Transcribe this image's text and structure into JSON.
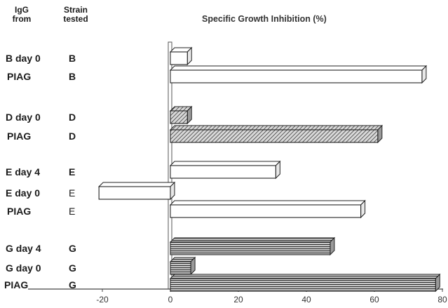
{
  "headers": {
    "igg_from": "IgG\nfrom",
    "strain_tested": "Strain\ntested"
  },
  "chart_data": {
    "type": "bar",
    "orientation": "horizontal",
    "title": "Specific Growth Inhibition (%)",
    "xlabel": "",
    "ylabel": "",
    "xlim": [
      -30,
      80
    ],
    "xticks": [
      "-20",
      "0",
      "20",
      "40",
      "60",
      "80"
    ],
    "grid": false,
    "rows": [
      {
        "igg": "B day 0",
        "strain": "B",
        "value": 5,
        "fill": "white"
      },
      {
        "igg": "PIAG",
        "strain": "B",
        "value": 74,
        "fill": "white"
      },
      {
        "igg": "D day 0",
        "strain": "D",
        "value": 5,
        "fill": "diagonal"
      },
      {
        "igg": "PIAG",
        "strain": "D",
        "value": 61,
        "fill": "diagonal"
      },
      {
        "igg": "E day 4",
        "strain": "E",
        "value": 31,
        "fill": "white"
      },
      {
        "igg": "E day 0",
        "strain": "E",
        "value": -21,
        "fill": "white"
      },
      {
        "igg": "PIAG",
        "strain": "E",
        "value": 56,
        "fill": "white"
      },
      {
        "igg": "G day 4",
        "strain": "G",
        "value": 47,
        "fill": "horizontal"
      },
      {
        "igg": "G day 0",
        "strain": "G",
        "value": 6,
        "fill": "horizontal"
      },
      {
        "igg": "PIAG",
        "strain": "G",
        "value": 78,
        "fill": "horizontal"
      }
    ]
  }
}
